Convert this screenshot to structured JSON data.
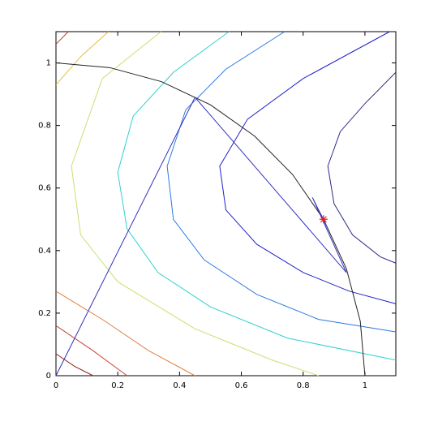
{
  "chart_data": {
    "type": "line",
    "xlim": [
      0,
      1.1
    ],
    "ylim": [
      0,
      1.1
    ],
    "xticks": [
      0,
      0.2,
      0.4,
      0.6,
      0.8,
      1
    ],
    "yticks": [
      0,
      0.2,
      0.4,
      0.6,
      0.8,
      1
    ],
    "series": [
      {
        "color": "#2a2a8a",
        "x": [
          1.1,
          1.0,
          0.92,
          0.88,
          0.9,
          0.96,
          1.05,
          1.1
        ],
        "y": [
          0.97,
          0.87,
          0.78,
          0.67,
          0.55,
          0.45,
          0.38,
          0.36
        ]
      },
      {
        "color": "#2020c8",
        "x": [
          1.08,
          0.8,
          0.62,
          0.53,
          0.55,
          0.65,
          0.8,
          0.95,
          1.1
        ],
        "y": [
          1.1,
          0.95,
          0.82,
          0.67,
          0.53,
          0.42,
          0.33,
          0.27,
          0.23
        ]
      },
      {
        "color": "#2a7ae0",
        "x": [
          0.74,
          0.55,
          0.42,
          0.36,
          0.38,
          0.48,
          0.65,
          0.85,
          1.1
        ],
        "y": [
          1.1,
          0.98,
          0.85,
          0.67,
          0.5,
          0.37,
          0.26,
          0.18,
          0.14
        ]
      },
      {
        "color": "#30d0d0",
        "x": [
          0.56,
          0.38,
          0.25,
          0.2,
          0.23,
          0.33,
          0.5,
          0.75,
          1.1
        ],
        "y": [
          1.1,
          0.97,
          0.83,
          0.65,
          0.47,
          0.33,
          0.22,
          0.12,
          0.05
        ]
      },
      {
        "color": "#c8e070",
        "x": [
          0.34,
          0.15,
          0.05,
          0.08,
          0.2,
          0.45,
          0.7,
          0.85
        ],
        "y": [
          1.1,
          0.95,
          0.67,
          0.45,
          0.3,
          0.15,
          0.05,
          0
        ]
      },
      {
        "color": "#e0c040",
        "x": [
          0,
          0.08,
          0.17
        ],
        "y": [
          0.93,
          1.02,
          1.1
        ]
      },
      {
        "color": "#e08040",
        "x": [
          0,
          0.15,
          0.3,
          0.45
        ],
        "y": [
          0.27,
          0.18,
          0.08,
          0
        ]
      },
      {
        "color": "#d04030",
        "x": [
          0,
          0.12,
          0.23
        ],
        "y": [
          0.16,
          0.08,
          0
        ]
      },
      {
        "color": "#902020",
        "x": [
          0,
          0.06,
          0.12
        ],
        "y": [
          0.07,
          0.03,
          0
        ]
      },
      {
        "color": "#c04020",
        "x": [
          0,
          0.04
        ],
        "y": [
          1.06,
          1.1
        ]
      },
      {
        "color": "#222222",
        "x": [
          0,
          0.174,
          0.342,
          0.5,
          0.643,
          0.766,
          0.866,
          0.94,
          0.985,
          1
        ],
        "y": [
          1,
          0.985,
          0.94,
          0.866,
          0.766,
          0.643,
          0.5,
          0.342,
          0.174,
          0
        ]
      },
      {
        "color": "#3030c0",
        "x": [
          0,
          0.45,
          0.94,
          0.83,
          0.88,
          0.84,
          0.87,
          0.85,
          0.866
        ],
        "y": [
          0,
          0.89,
          0.33,
          0.57,
          0.47,
          0.55,
          0.49,
          0.53,
          0.5
        ]
      },
      {
        "color": "#e02020",
        "marker": "star",
        "x": [
          0.866
        ],
        "y": [
          0.5
        ]
      }
    ]
  }
}
